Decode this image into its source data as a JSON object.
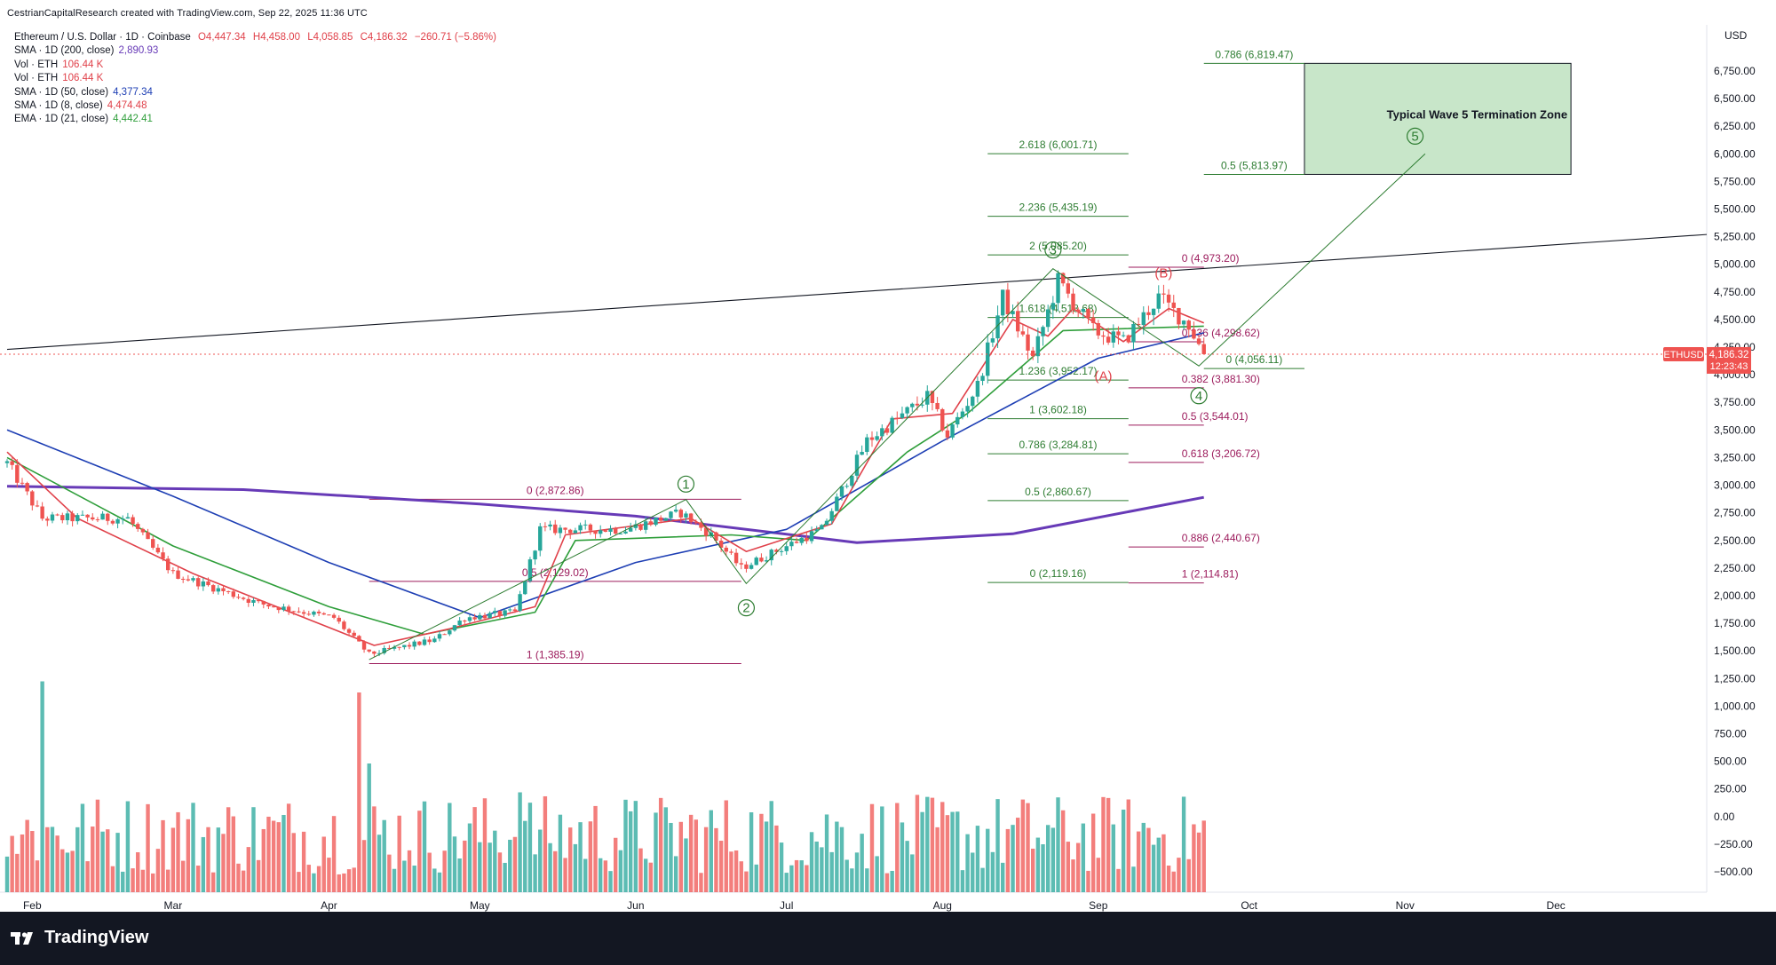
{
  "header": {
    "credit": "CestrianCapitalResearch created with TradingView.com, Sep 22, 2025 11:36 UTC"
  },
  "legend": {
    "symbol": "Ethereum / U.S. Dollar · 1D · Coinbase",
    "ohlc": {
      "o": "O4,447.34",
      "h": "H4,458.00",
      "l": "L4,058.85",
      "c": "C4,186.32",
      "chg": "−260.71 (−5.86%)"
    },
    "indicators": [
      {
        "label": "SMA · 1D (200, close)",
        "value": "2,890.93",
        "color": "#673ab7"
      },
      {
        "label": "Vol · ETH",
        "value": "106.44 K",
        "color": "#e0414a"
      },
      {
        "label": "Vol · ETH",
        "value": "106.44 K",
        "color": "#e0414a"
      },
      {
        "label": "SMA · 1D (50, close)",
        "value": "4,377.34",
        "color": "#1e3fb4"
      },
      {
        "label": "SMA · 1D (8, close)",
        "value": "4,474.48",
        "color": "#e0414a"
      },
      {
        "label": "EMA · 1D (21, close)",
        "value": "4,442.41",
        "color": "#2e9e3a"
      }
    ]
  },
  "footer": {
    "brand": "TradingView"
  },
  "chart_data": {
    "type": "candlestick",
    "currency_label": "USD",
    "price_ylim": [
      -800,
      7000
    ],
    "y_ticks": [
      "6,750.00",
      "6,500.00",
      "6,250.00",
      "6,000.00",
      "5,750.00",
      "5,500.00",
      "5,250.00",
      "5,000.00",
      "4,750.00",
      "4,500.00",
      "4,250.00",
      "4,000.00",
      "3,750.00",
      "3,500.00",
      "3,250.00",
      "3,000.00",
      "2,750.00",
      "2,500.00",
      "2,250.00",
      "2,000.00",
      "1,750.00",
      "1,500.00",
      "1,250.00",
      "1,000.00",
      "750.00",
      "500.00",
      "250.00",
      "0.00",
      "−250.00",
      "−500.00"
    ],
    "x_ticks": [
      "Feb",
      "Mar",
      "Apr",
      "May",
      "Jun",
      "Jul",
      "Aug",
      "Sep",
      "Oct",
      "Nov",
      "Dec"
    ],
    "current_price": {
      "symbol": "ETHUSD",
      "price": "4,186.32",
      "countdown": "12:23:43",
      "value": 4186.32
    },
    "anchor_prices": [
      {
        "date": "2025-01-27",
        "close": 3200
      },
      {
        "date": "2025-02-03",
        "close": 2700
      },
      {
        "date": "2025-02-20",
        "close": 2700
      },
      {
        "date": "2025-03-01",
        "close": 2200
      },
      {
        "date": "2025-03-18",
        "close": 1930
      },
      {
        "date": "2025-04-02",
        "close": 1800
      },
      {
        "date": "2025-04-09",
        "close": 1470
      },
      {
        "date": "2025-04-22",
        "close": 1600
      },
      {
        "date": "2025-04-28",
        "close": 1800
      },
      {
        "date": "2025-05-08",
        "close": 1850
      },
      {
        "date": "2025-05-13",
        "close": 2600
      },
      {
        "date": "2025-05-30",
        "close": 2600
      },
      {
        "date": "2025-06-10",
        "close": 2750
      },
      {
        "date": "2025-06-16",
        "close": 2550
      },
      {
        "date": "2025-06-22",
        "close": 2250
      },
      {
        "date": "2025-07-01",
        "close": 2450
      },
      {
        "date": "2025-07-08",
        "close": 2600
      },
      {
        "date": "2025-07-17",
        "close": 3400
      },
      {
        "date": "2025-07-29",
        "close": 3800
      },
      {
        "date": "2025-08-02",
        "close": 3450
      },
      {
        "date": "2025-08-08",
        "close": 3900
      },
      {
        "date": "2025-08-13",
        "close": 4700
      },
      {
        "date": "2025-08-19",
        "close": 4150
      },
      {
        "date": "2025-08-24",
        "close": 4850
      },
      {
        "date": "2025-08-31",
        "close": 4400
      },
      {
        "date": "2025-09-06",
        "close": 4300
      },
      {
        "date": "2025-09-13",
        "close": 4700
      },
      {
        "date": "2025-09-19",
        "close": 4450
      },
      {
        "date": "2025-09-22",
        "close": 4186
      }
    ],
    "moving_averages": [
      {
        "name": "SMA 200",
        "color": "#673ab7",
        "points": [
          [
            "2025-01-27",
            2990
          ],
          [
            "2025-03-15",
            2960
          ],
          [
            "2025-05-01",
            2830
          ],
          [
            "2025-06-01",
            2720
          ],
          [
            "2025-07-15",
            2480
          ],
          [
            "2025-08-15",
            2560
          ],
          [
            "2025-09-22",
            2890
          ]
        ]
      },
      {
        "name": "SMA 50",
        "color": "#1e3fb4",
        "points": [
          [
            "2025-01-27",
            3500
          ],
          [
            "2025-03-01",
            2900
          ],
          [
            "2025-04-01",
            2300
          ],
          [
            "2025-05-01",
            1800
          ],
          [
            "2025-06-01",
            2300
          ],
          [
            "2025-07-01",
            2600
          ],
          [
            "2025-08-01",
            3400
          ],
          [
            "2025-09-01",
            4150
          ],
          [
            "2025-09-22",
            4380
          ]
        ]
      },
      {
        "name": "EMA 21",
        "color": "#2e9e3a",
        "points": [
          [
            "2025-01-27",
            3250
          ],
          [
            "2025-03-01",
            2450
          ],
          [
            "2025-04-01",
            1900
          ],
          [
            "2025-04-20",
            1650
          ],
          [
            "2025-05-12",
            1850
          ],
          [
            "2025-05-20",
            2500
          ],
          [
            "2025-06-20",
            2550
          ],
          [
            "2025-07-05",
            2500
          ],
          [
            "2025-07-25",
            3300
          ],
          [
            "2025-08-06",
            3650
          ],
          [
            "2025-08-25",
            4400
          ],
          [
            "2025-09-22",
            4440
          ]
        ]
      },
      {
        "name": "SMA 8",
        "color": "#e0414a",
        "points": [
          [
            "2025-01-27",
            3300
          ],
          [
            "2025-02-10",
            2700
          ],
          [
            "2025-03-05",
            2200
          ],
          [
            "2025-04-10",
            1550
          ],
          [
            "2025-04-25",
            1700
          ],
          [
            "2025-05-12",
            1900
          ],
          [
            "2025-05-18",
            2550
          ],
          [
            "2025-06-12",
            2700
          ],
          [
            "2025-06-23",
            2400
          ],
          [
            "2025-07-10",
            2650
          ],
          [
            "2025-07-22",
            3600
          ],
          [
            "2025-08-03",
            3650
          ],
          [
            "2025-08-15",
            4500
          ],
          [
            "2025-08-22",
            4350
          ],
          [
            "2025-08-27",
            4600
          ],
          [
            "2025-09-06",
            4300
          ],
          [
            "2025-09-15",
            4600
          ],
          [
            "2025-09-22",
            4470
          ]
        ]
      }
    ],
    "trendline": {
      "from": [
        "2025-01-27",
        4230
      ],
      "to": [
        "2025-12-31",
        5270
      ]
    },
    "fib_sets": [
      {
        "color": "#9c1b5c",
        "x_range": [
          "2025-04-09",
          "2025-06-22"
        ],
        "levels": [
          {
            "label": "0 (2,872.86)",
            "value": 2872.86
          },
          {
            "label": "0.5 (2,129.02)",
            "value": 2129.02
          },
          {
            "label": "1 (1,385.19)",
            "value": 1385.19
          }
        ]
      },
      {
        "color": "#2e7d32",
        "x_range": [
          "2025-08-10",
          "2025-09-07"
        ],
        "levels": [
          {
            "label": "2.618 (6,001.71)",
            "value": 6001.71
          },
          {
            "label": "2.236 (5,435.19)",
            "value": 5435.19
          },
          {
            "label": "2 (5,085.20)",
            "value": 5085.2
          },
          {
            "label": "1.618 (4,518.68)",
            "value": 4518.68
          },
          {
            "label": "1.236 (3,952.17)",
            "value": 3952.17
          },
          {
            "label": "1 (3,602.18)",
            "value": 3602.18
          },
          {
            "label": "0.786 (3,284.81)",
            "value": 3284.81
          },
          {
            "label": "0.5 (2,860.67)",
            "value": 2860.67
          },
          {
            "label": "0 (2,119.16)",
            "value": 2119.16
          }
        ]
      },
      {
        "color": "#9c1b5c",
        "x_range": [
          "2025-09-07",
          "2025-09-22"
        ],
        "levels": [
          {
            "label": "0 (4,973.20)",
            "value": 4973.2
          },
          {
            "label": "0.236 (4,298.62)",
            "value": 4298.62
          },
          {
            "label": "0.382 (3,881.30)",
            "value": 3881.3
          },
          {
            "label": "0.5 (3,544.01)",
            "value": 3544.01
          },
          {
            "label": "0.618 (3,206.72)",
            "value": 3206.72
          },
          {
            "label": "0.886 (2,440.67)",
            "value": 2440.67
          },
          {
            "label": "1 (2,114.81)",
            "value": 2114.81
          }
        ]
      },
      {
        "color": "#2e7d32",
        "x_range": [
          "2025-09-22",
          "2025-10-12"
        ],
        "levels": [
          {
            "label": "0.786 (6,819.47)",
            "value": 6819.47
          },
          {
            "label": "0.5 (5,813.97)",
            "value": 5813.97
          },
          {
            "label": "0 (4,056.11)",
            "value": 4056.11
          }
        ]
      }
    ],
    "wave_path": [
      [
        "2025-04-09",
        1420
      ],
      [
        "2025-06-11",
        2870
      ],
      [
        "2025-06-23",
        2110
      ],
      [
        "2025-08-23",
        4960
      ],
      [
        "2025-09-21",
        4080
      ],
      [
        "2025-11-05",
        6000
      ]
    ],
    "waves": [
      {
        "label": "1",
        "date": "2025-06-11",
        "price": 3010,
        "color": "#2e7d32"
      },
      {
        "label": "2",
        "date": "2025-06-23",
        "price": 1890,
        "color": "#2e7d32"
      },
      {
        "label": "3",
        "date": "2025-08-23",
        "price": 5130,
        "color": "#2e7d32"
      },
      {
        "label": "4",
        "date": "2025-09-21",
        "price": 3810,
        "color": "#2e7d32"
      },
      {
        "label": "5",
        "date": "2025-11-03",
        "price": 6160,
        "color": "#2e7d32"
      }
    ],
    "abc_labels": [
      {
        "label": "(A)",
        "date": "2025-09-02",
        "price": 3950,
        "color": "#e0414a"
      },
      {
        "label": "(B)",
        "date": "2025-09-14",
        "price": 4880,
        "color": "#e0414a"
      }
    ],
    "zone": {
      "title": "Typical Wave 5 Termination Zone",
      "x_range": [
        "2025-10-12",
        "2025-12-04"
      ],
      "price_range": [
        5813.97,
        6819.47
      ]
    },
    "volume_profile": [
      {
        "date": "2025-02-03",
        "height": 0.95,
        "color": "#26a69a"
      },
      {
        "date": "2025-04-07",
        "height": 0.9,
        "color": "#ef5350"
      },
      {
        "date": "2025-04-09",
        "height": 0.58,
        "color": "#26a69a"
      },
      {
        "date": "2025-05-09",
        "height": 0.45,
        "color": "#26a69a"
      }
    ]
  }
}
